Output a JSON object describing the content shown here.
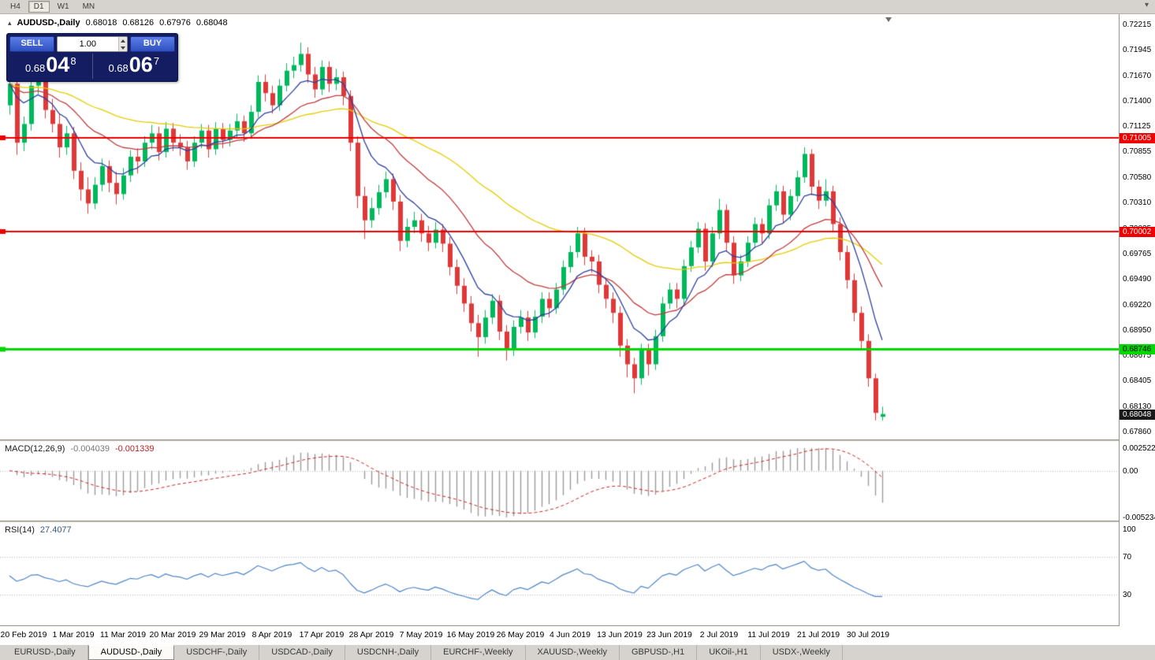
{
  "toolbar": {
    "timeframes": [
      {
        "label": "H4",
        "active": false
      },
      {
        "label": "D1",
        "active": true
      },
      {
        "label": "W1",
        "active": false
      },
      {
        "label": "MN",
        "active": false
      }
    ]
  },
  "chart_header": {
    "symbol": "AUDUSD-,Daily",
    "open": "0.68018",
    "high": "0.68126",
    "low": "0.67976",
    "close": "0.68048"
  },
  "trade_panel": {
    "sell_label": "SELL",
    "buy_label": "BUY",
    "volume": "1.00",
    "sell_price": {
      "base": "0.68",
      "big": "04",
      "sup": "8"
    },
    "buy_price": {
      "base": "0.68",
      "big": "06",
      "sup": "7"
    }
  },
  "price_axis": {
    "ticks": [
      "0.72215",
      "0.71945",
      "0.71670",
      "0.71400",
      "0.71125",
      "0.70855",
      "0.70580",
      "0.70310",
      "0.70035",
      "0.69765",
      "0.69490",
      "0.69220",
      "0.68950",
      "0.68675",
      "0.68405",
      "0.68130",
      "0.67860"
    ],
    "current_price": "0.68048"
  },
  "chart_data": {
    "type": "candlestick",
    "symbol": "AUDUSD",
    "timeframe": "Daily",
    "title": "AUDUSD-,Daily",
    "price_range": {
      "max": 0.72215,
      "min": 0.6786
    },
    "x_labels": [
      "20 Feb 2019",
      "1 Mar 2019",
      "11 Mar 2019",
      "20 Mar 2019",
      "29 Mar 2019",
      "8 Apr 2019",
      "17 Apr 2019",
      "28 Apr 2019",
      "7 May 2019",
      "16 May 2019",
      "26 May 2019",
      "4 Jun 2019",
      "13 Jun 2019",
      "23 Jun 2019",
      "2 Jul 2019",
      "11 Jul 2019",
      "21 Jul 2019",
      "30 Jul 2019"
    ],
    "candles_per_label": 7,
    "first_label_index": 2,
    "up_color": "#00b85c",
    "down_color": "#e03838",
    "ohlc": [
      [
        0.7135,
        0.7168,
        0.7125,
        0.7158
      ],
      [
        0.7158,
        0.7165,
        0.7082,
        0.7095
      ],
      [
        0.7095,
        0.7123,
        0.7086,
        0.7115
      ],
      [
        0.7115,
        0.7164,
        0.7108,
        0.7156
      ],
      [
        0.7156,
        0.717,
        0.7147,
        0.7162
      ],
      [
        0.7162,
        0.7169,
        0.7121,
        0.713
      ],
      [
        0.713,
        0.7142,
        0.7106,
        0.7115
      ],
      [
        0.7115,
        0.7126,
        0.7079,
        0.709
      ],
      [
        0.709,
        0.7113,
        0.7082,
        0.7105
      ],
      [
        0.7105,
        0.7112,
        0.7056,
        0.7065
      ],
      [
        0.7065,
        0.7074,
        0.7033,
        0.7045
      ],
      [
        0.7045,
        0.7058,
        0.7019,
        0.703
      ],
      [
        0.703,
        0.7058,
        0.7024,
        0.705
      ],
      [
        0.705,
        0.7078,
        0.7043,
        0.707
      ],
      [
        0.707,
        0.7076,
        0.7042,
        0.7052
      ],
      [
        0.7052,
        0.7064,
        0.7029,
        0.704
      ],
      [
        0.704,
        0.7068,
        0.7034,
        0.706
      ],
      [
        0.706,
        0.7087,
        0.7053,
        0.708
      ],
      [
        0.708,
        0.7089,
        0.7062,
        0.7075
      ],
      [
        0.7075,
        0.7102,
        0.7069,
        0.7095
      ],
      [
        0.7095,
        0.7114,
        0.7088,
        0.7105
      ],
      [
        0.7105,
        0.7112,
        0.7076,
        0.7085
      ],
      [
        0.7085,
        0.7117,
        0.7079,
        0.711
      ],
      [
        0.711,
        0.7116,
        0.7086,
        0.7095
      ],
      [
        0.7095,
        0.7104,
        0.7081,
        0.709
      ],
      [
        0.709,
        0.7097,
        0.7066,
        0.7075
      ],
      [
        0.7075,
        0.7102,
        0.7069,
        0.7095
      ],
      [
        0.7095,
        0.7115,
        0.7089,
        0.7108
      ],
      [
        0.7108,
        0.7114,
        0.7079,
        0.7088
      ],
      [
        0.7088,
        0.7117,
        0.7082,
        0.711
      ],
      [
        0.711,
        0.7116,
        0.7089,
        0.7098
      ],
      [
        0.7098,
        0.7115,
        0.7091,
        0.7108
      ],
      [
        0.7108,
        0.7126,
        0.7101,
        0.7118
      ],
      [
        0.7118,
        0.7124,
        0.7096,
        0.7105
      ],
      [
        0.7105,
        0.7135,
        0.7099,
        0.7128
      ],
      [
        0.7128,
        0.7167,
        0.7122,
        0.716
      ],
      [
        0.716,
        0.7168,
        0.7139,
        0.7148
      ],
      [
        0.7148,
        0.7156,
        0.7126,
        0.7135
      ],
      [
        0.7135,
        0.7163,
        0.7129,
        0.7156
      ],
      [
        0.7156,
        0.718,
        0.715,
        0.7172
      ],
      [
        0.7172,
        0.7187,
        0.7164,
        0.7178
      ],
      [
        0.7178,
        0.7202,
        0.7171,
        0.719
      ],
      [
        0.719,
        0.7197,
        0.7159,
        0.7168
      ],
      [
        0.7168,
        0.7176,
        0.7143,
        0.7152
      ],
      [
        0.7152,
        0.7183,
        0.7146,
        0.7176
      ],
      [
        0.7176,
        0.7182,
        0.7149,
        0.7158
      ],
      [
        0.7158,
        0.7174,
        0.7151,
        0.7165
      ],
      [
        0.7165,
        0.7171,
        0.7135,
        0.7145
      ],
      [
        0.7145,
        0.7151,
        0.7086,
        0.7095
      ],
      [
        0.7095,
        0.7102,
        0.7025,
        0.7038
      ],
      [
        0.7038,
        0.7048,
        0.6992,
        0.7012
      ],
      [
        0.7012,
        0.7036,
        0.7004,
        0.7025
      ],
      [
        0.7025,
        0.705,
        0.7018,
        0.7042
      ],
      [
        0.7042,
        0.7064,
        0.7036,
        0.7056
      ],
      [
        0.7056,
        0.7062,
        0.7023,
        0.7032
      ],
      [
        0.7032,
        0.7039,
        0.6979,
        0.699
      ],
      [
        0.699,
        0.7014,
        0.6983,
        0.7005
      ],
      [
        0.7005,
        0.7021,
        0.6998,
        0.7012
      ],
      [
        0.7012,
        0.7019,
        0.6989,
        0.6998
      ],
      [
        0.6998,
        0.7006,
        0.6979,
        0.6988
      ],
      [
        0.6988,
        0.701,
        0.6982,
        0.7002
      ],
      [
        0.7002,
        0.7008,
        0.6978,
        0.6987
      ],
      [
        0.6987,
        0.6994,
        0.6953,
        0.6962
      ],
      [
        0.6962,
        0.697,
        0.6933,
        0.6942
      ],
      [
        0.6942,
        0.695,
        0.6914,
        0.6923
      ],
      [
        0.6923,
        0.6931,
        0.6893,
        0.6902
      ],
      [
        0.6902,
        0.6911,
        0.6866,
        0.6887
      ],
      [
        0.6887,
        0.6916,
        0.688,
        0.6908
      ],
      [
        0.6908,
        0.6933,
        0.6901,
        0.6926
      ],
      [
        0.6926,
        0.6932,
        0.6884,
        0.6893
      ],
      [
        0.6893,
        0.69,
        0.6862,
        0.6873
      ],
      [
        0.6873,
        0.6905,
        0.6867,
        0.6898
      ],
      [
        0.6898,
        0.6916,
        0.6891,
        0.6908
      ],
      [
        0.6908,
        0.6915,
        0.6883,
        0.6892
      ],
      [
        0.6892,
        0.6916,
        0.6886,
        0.6909
      ],
      [
        0.6909,
        0.6935,
        0.6902,
        0.6928
      ],
      [
        0.6928,
        0.6935,
        0.6908,
        0.6918
      ],
      [
        0.6918,
        0.6945,
        0.6912,
        0.6938
      ],
      [
        0.6938,
        0.6969,
        0.6932,
        0.6962
      ],
      [
        0.6962,
        0.6985,
        0.6956,
        0.6978
      ],
      [
        0.6978,
        0.7005,
        0.6972,
        0.6998
      ],
      [
        0.6998,
        0.7004,
        0.6964,
        0.6973
      ],
      [
        0.6973,
        0.698,
        0.6956,
        0.6968
      ],
      [
        0.6968,
        0.6975,
        0.6934,
        0.6943
      ],
      [
        0.6943,
        0.695,
        0.6918,
        0.6928
      ],
      [
        0.6928,
        0.6935,
        0.6902,
        0.6913
      ],
      [
        0.6913,
        0.692,
        0.6866,
        0.6878
      ],
      [
        0.6878,
        0.6885,
        0.6844,
        0.6858
      ],
      [
        0.6858,
        0.6865,
        0.6827,
        0.6843
      ],
      [
        0.6843,
        0.688,
        0.6836,
        0.6873
      ],
      [
        0.6873,
        0.688,
        0.6846,
        0.6858
      ],
      [
        0.6858,
        0.6895,
        0.6852,
        0.6888
      ],
      [
        0.6888,
        0.693,
        0.6882,
        0.6923
      ],
      [
        0.6923,
        0.6945,
        0.6917,
        0.6938
      ],
      [
        0.6938,
        0.6945,
        0.6918,
        0.6928
      ],
      [
        0.6928,
        0.697,
        0.6922,
        0.6963
      ],
      [
        0.6963,
        0.699,
        0.6957,
        0.6983
      ],
      [
        0.6983,
        0.701,
        0.6977,
        0.7003
      ],
      [
        0.7003,
        0.7009,
        0.6958,
        0.6968
      ],
      [
        0.6968,
        0.7005,
        0.6962,
        0.6998
      ],
      [
        0.6998,
        0.7035,
        0.6992,
        0.7023
      ],
      [
        0.7023,
        0.7029,
        0.6979,
        0.6988
      ],
      [
        0.6988,
        0.6995,
        0.6944,
        0.6953
      ],
      [
        0.6953,
        0.6975,
        0.6947,
        0.6968
      ],
      [
        0.6968,
        0.6995,
        0.6962,
        0.6988
      ],
      [
        0.6988,
        0.7015,
        0.6982,
        0.7008
      ],
      [
        0.7008,
        0.7014,
        0.6988,
        0.6998
      ],
      [
        0.6998,
        0.7035,
        0.6992,
        0.7028
      ],
      [
        0.7028,
        0.705,
        0.7022,
        0.7043
      ],
      [
        0.7043,
        0.7049,
        0.7009,
        0.7018
      ],
      [
        0.7018,
        0.7045,
        0.7012,
        0.7038
      ],
      [
        0.7038,
        0.7065,
        0.7032,
        0.7058
      ],
      [
        0.7058,
        0.709,
        0.7052,
        0.7083
      ],
      [
        0.7083,
        0.7088,
        0.7039,
        0.7048
      ],
      [
        0.7048,
        0.7055,
        0.7024,
        0.7033
      ],
      [
        0.7033,
        0.7056,
        0.7027,
        0.7043
      ],
      [
        0.7043,
        0.7049,
        0.6999,
        0.7008
      ],
      [
        0.7008,
        0.7015,
        0.6969,
        0.6978
      ],
      [
        0.6978,
        0.6985,
        0.6939,
        0.6948
      ],
      [
        0.6948,
        0.6955,
        0.6904,
        0.6913
      ],
      [
        0.6913,
        0.692,
        0.6874,
        0.6883
      ],
      [
        0.6883,
        0.689,
        0.6834,
        0.6843
      ],
      [
        0.6843,
        0.6848,
        0.6798,
        0.6806
      ],
      [
        0.68018,
        0.68126,
        0.67976,
        0.68048
      ]
    ],
    "hlines": [
      {
        "price": 0.71005,
        "label": "0.71005",
        "color": "#ee0000",
        "text_color": "#ffffff",
        "width": 2
      },
      {
        "price": 0.70002,
        "label": "0.70002",
        "color": "#ee0000",
        "text_color": "#ffffff",
        "width": 2
      },
      {
        "price": 0.68746,
        "label": "0.68746",
        "color": "#00d800",
        "text_color": "#000000",
        "width": 3
      }
    ],
    "moving_averages": [
      {
        "period": 8,
        "color": "#2b3f9e"
      },
      {
        "period": 20,
        "color": "#c03a3a"
      },
      {
        "period": 50,
        "color": "#e3cc00"
      }
    ],
    "macd": {
      "name": "MACD(12,26,9)",
      "value": "-0.004039",
      "signal_value": "-0.001339",
      "fast": 12,
      "slow": 26,
      "signal": 9,
      "axis_max": 0.002522,
      "axis_min": -0.005234,
      "axis_max_label": "0.002522",
      "axis_zero_label": "0.00",
      "axis_min_label": "-0.005234",
      "hist_color": "#9a9a9a",
      "signal_color": "#cc2222"
    },
    "rsi": {
      "name": "RSI(14)",
      "value": "27.4077",
      "period": 14,
      "levels": [
        70,
        30
      ],
      "axis_labels": [
        "100",
        "70",
        "30"
      ],
      "color": "#4f86c6"
    }
  },
  "tabs": [
    {
      "label": "EURUSD-,Daily",
      "active": false
    },
    {
      "label": "AUDUSD-,Daily",
      "active": true
    },
    {
      "label": "USDCHF-,Daily",
      "active": false
    },
    {
      "label": "USDCAD-,Daily",
      "active": false
    },
    {
      "label": "USDCNH-,Daily",
      "active": false
    },
    {
      "label": "EURCHF-,Weekly",
      "active": false
    },
    {
      "label": "XAUUSD-,Weekly",
      "active": false
    },
    {
      "label": "GBPUSD-,H1",
      "active": false
    },
    {
      "label": "UKOil-,H1",
      "active": false
    },
    {
      "label": "USDX-,Weekly",
      "active": false
    }
  ]
}
